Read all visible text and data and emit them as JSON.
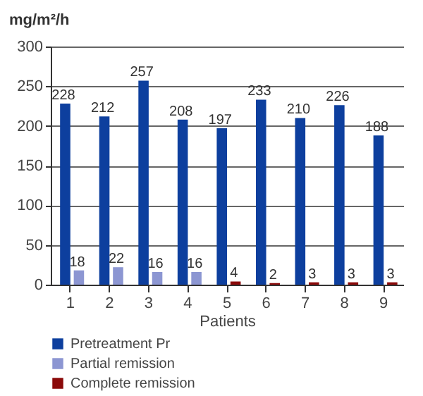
{
  "chart_data": {
    "type": "bar",
    "ylabel": "mg/m²/h",
    "xlabel": "Patients",
    "categories": [
      "1",
      "2",
      "3",
      "4",
      "5",
      "6",
      "7",
      "8",
      "9"
    ],
    "series": [
      {
        "name": "Pretreatment Pr",
        "color": "#0d3f9e",
        "values": [
          228,
          212,
          257,
          208,
          197,
          233,
          210,
          226,
          188
        ]
      },
      {
        "name": "Partial remission",
        "color": "#8c96d2",
        "values": [
          18,
          22,
          16,
          16,
          null,
          null,
          null,
          null,
          null
        ]
      },
      {
        "name": "Complete remission",
        "color": "#8b0a0a",
        "values": [
          null,
          null,
          null,
          null,
          4,
          2,
          3,
          3,
          3
        ]
      }
    ],
    "ylim": [
      0,
      300
    ],
    "yticks": [
      0,
      50,
      100,
      150,
      200,
      250,
      300
    ],
    "grid": "y",
    "legend": "bottom",
    "data_labels": true
  }
}
